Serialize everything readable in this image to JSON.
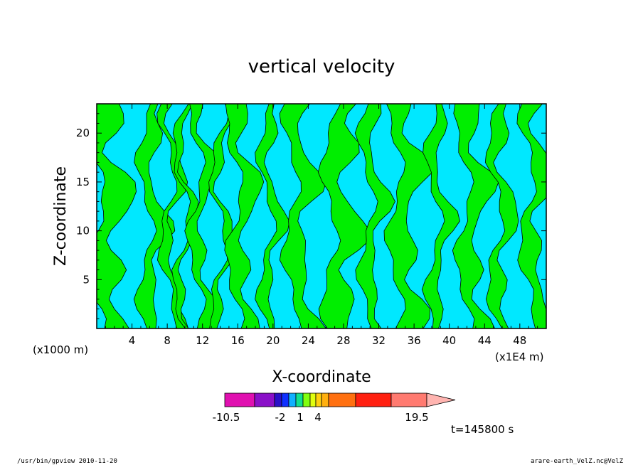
{
  "chart_data": {
    "type": "heatmap",
    "title": "vertical velocity",
    "xlabel": "X-coordinate",
    "ylabel": "Z-coordinate",
    "x_scale_note": "(x1000 m)",
    "x_scale_note_right": "(x1E4 m)",
    "xlim": [
      0,
      51
    ],
    "ylim": [
      0,
      23
    ],
    "x_ticks": [
      4,
      8,
      12,
      16,
      20,
      24,
      28,
      32,
      36,
      40,
      44,
      48
    ],
    "y_ticks": [
      5,
      10,
      15,
      20
    ],
    "colorbar": {
      "colors": [
        "#e010b0",
        "#8a10c8",
        "#2a10c8",
        "#1030ff",
        "#10b0ff",
        "#10e090",
        "#80ff10",
        "#e0ff10",
        "#ffd010",
        "#ffb010",
        "#ff7010",
        "#ff2010",
        "#ff7a70",
        "#ffb4b0"
      ],
      "labels": [
        "-10.5",
        "-2",
        "1",
        "4",
        "19.5"
      ]
    },
    "time_label": "t=145800 s",
    "colors": {
      "cyan": "#00e8ff",
      "green": "#00ee00",
      "line": "#000000"
    }
  },
  "footer": {
    "left": "/usr/bin/gpview   2010-11-20",
    "right": "arare-earth_VelZ.nc@VelZ"
  }
}
